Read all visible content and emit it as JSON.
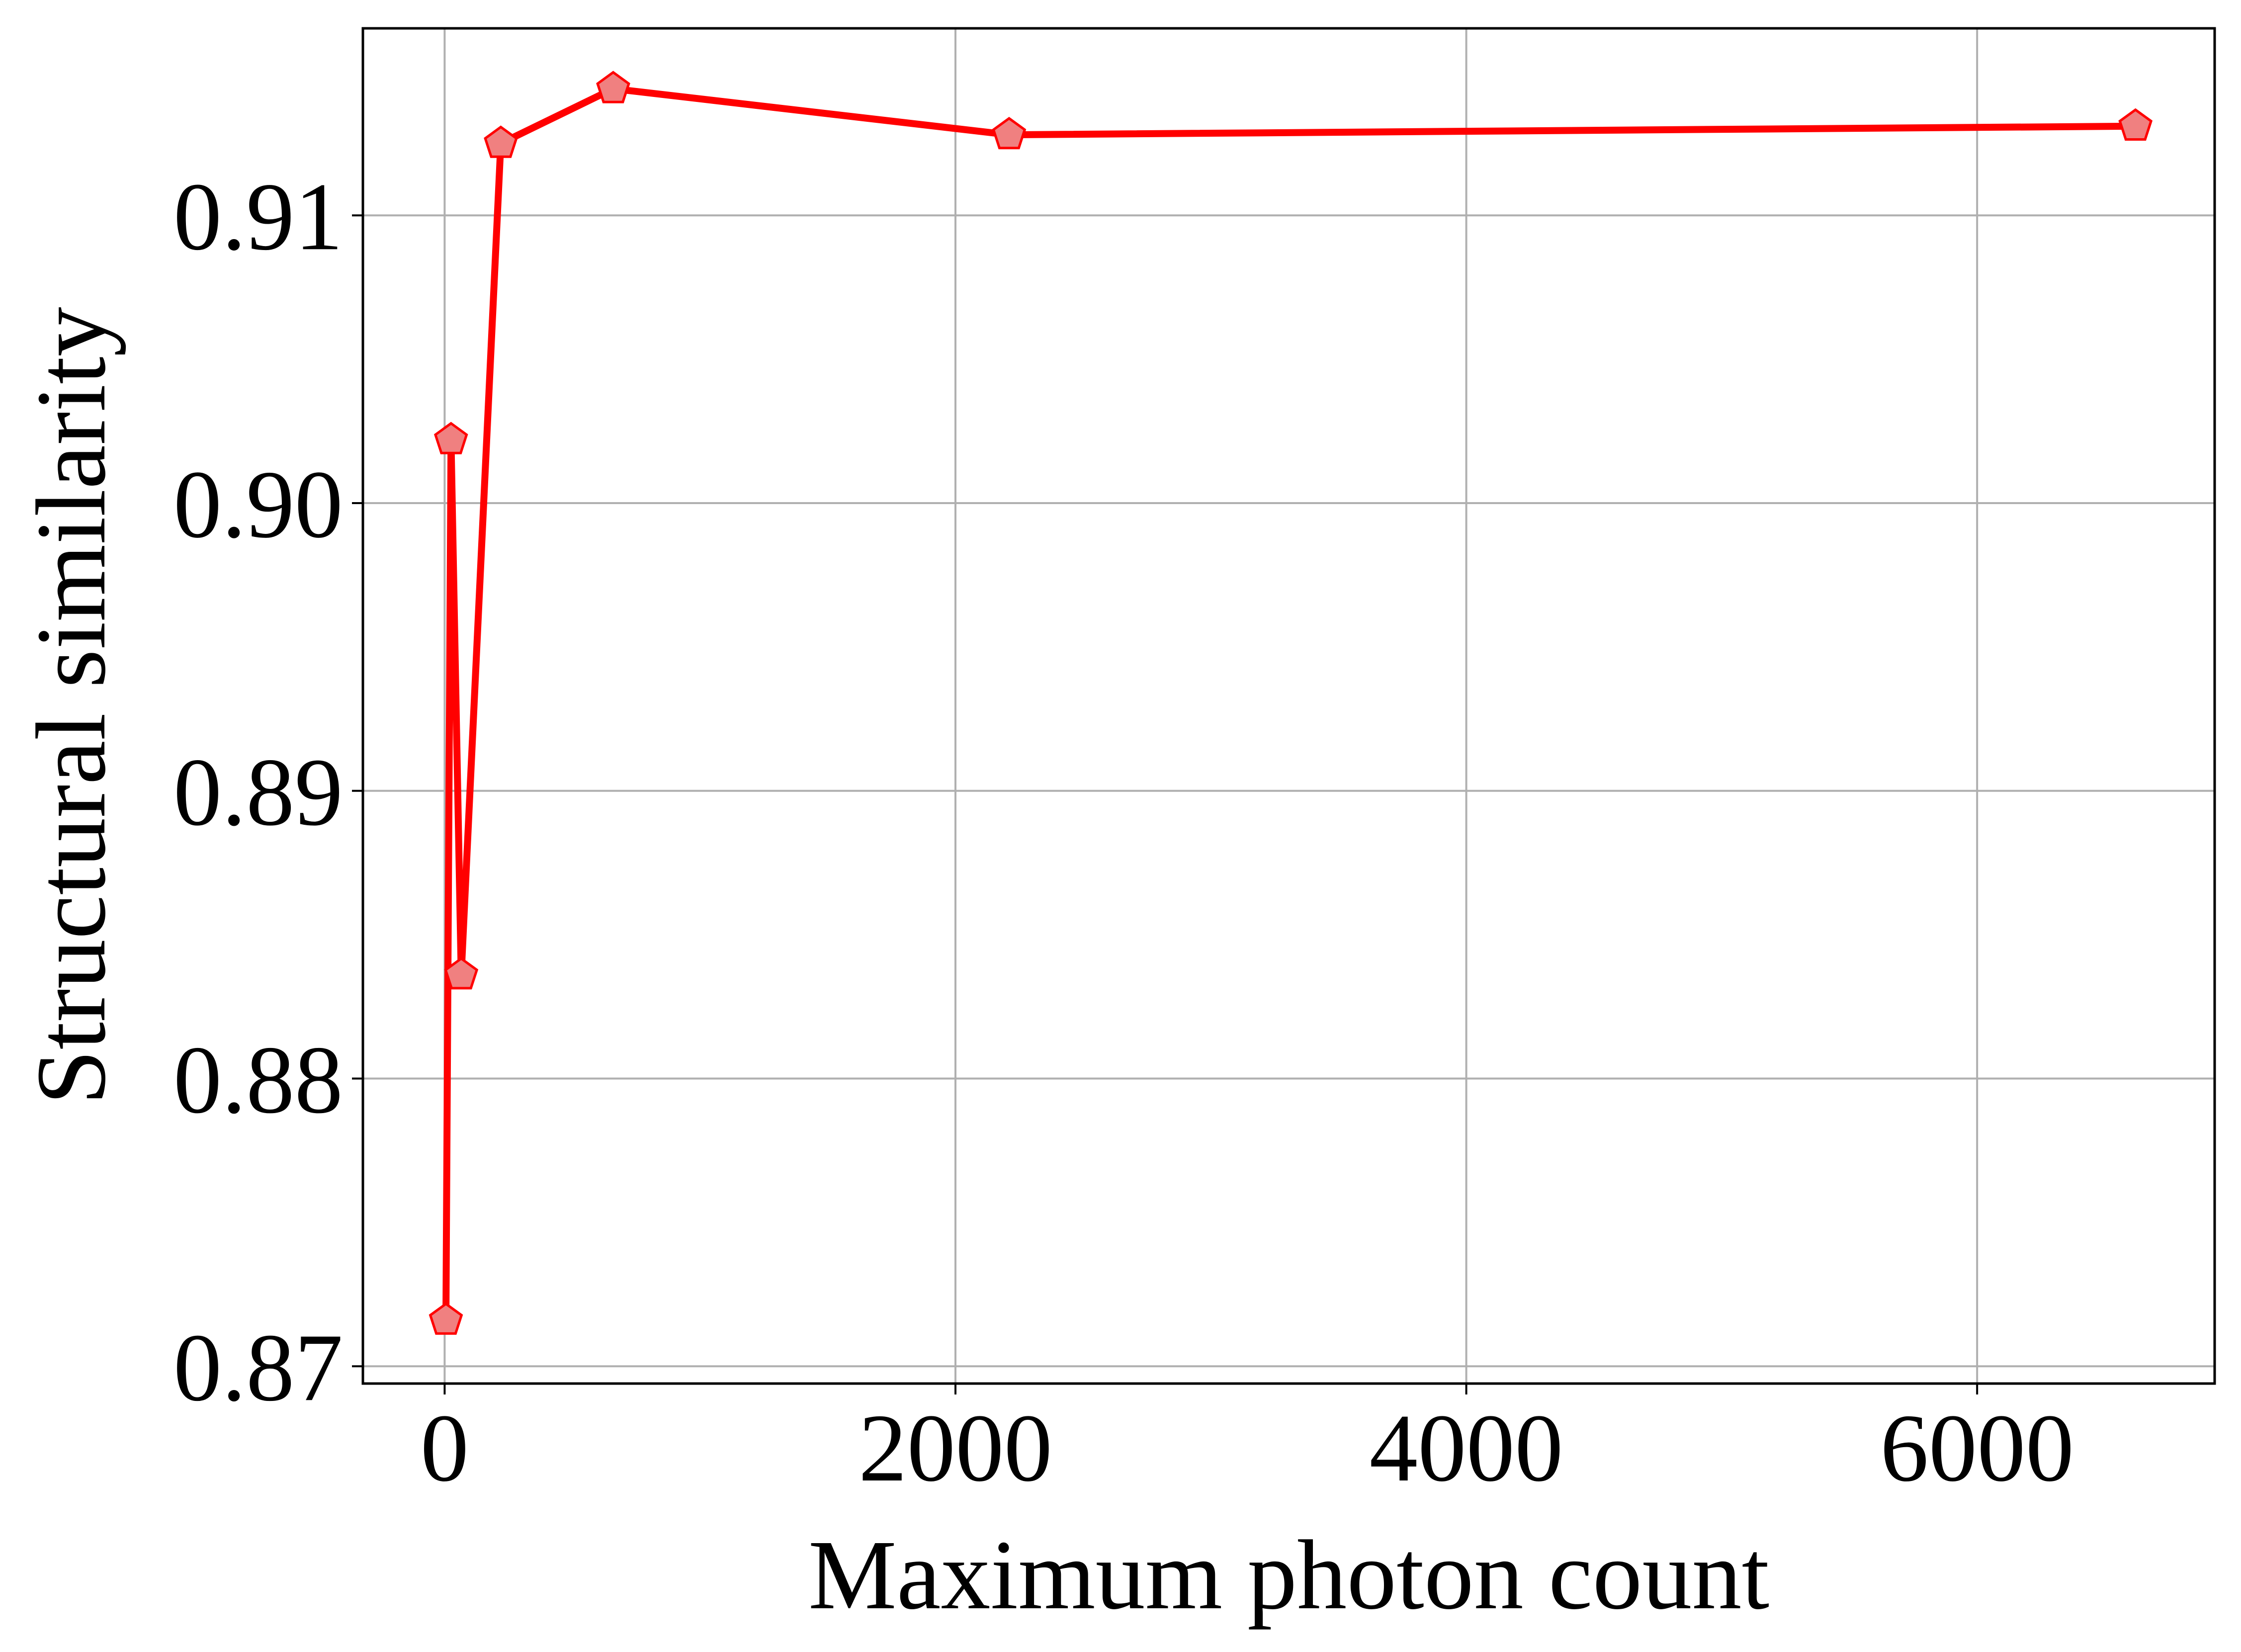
{
  "chart_data": {
    "type": "line",
    "title": "",
    "xlabel": "Maximum photon count",
    "ylabel": "Structural similarity",
    "xlim": [
      -320,
      6930
    ],
    "ylim": [
      0.8694,
      0.9165
    ],
    "x_ticks": [
      0,
      2000,
      4000,
      6000
    ],
    "x_tick_labels": [
      "0",
      "2000",
      "4000",
      "6000"
    ],
    "y_ticks": [
      0.87,
      0.88,
      0.89,
      0.9,
      0.91
    ],
    "y_tick_labels": [
      "0.87",
      "0.88",
      "0.89",
      "0.90",
      "0.91"
    ],
    "grid": true,
    "legend": "none",
    "series": [
      {
        "x": [
          5,
          25,
          65,
          220,
          660,
          2210,
          6620
        ],
        "y": [
          0.8716,
          0.9022,
          0.8836,
          0.9125,
          0.9144,
          0.9128,
          0.9131
        ],
        "line_color": "#ff0000",
        "marker": "pentagon",
        "marker_fill": "#f08080",
        "marker_edge": "#ff0000"
      }
    ]
  }
}
